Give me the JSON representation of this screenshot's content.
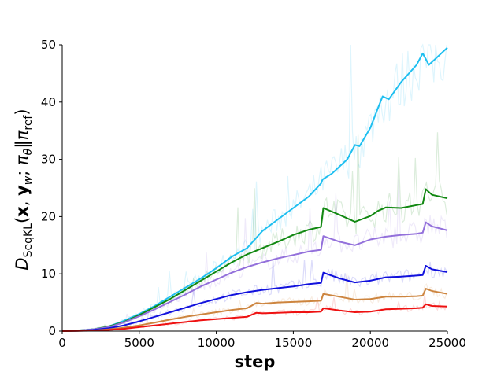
{
  "chart_data": {
    "type": "line",
    "title": "",
    "xlabel": "step",
    "ylabel": "D_SeqKL(x, y_w; π_θ‖π_ref)",
    "ylabel_parts": {
      "main": "D",
      "sub": "SeqKL",
      "args_open": "(",
      "x": "x",
      "comma1": ", ",
      "y": "y",
      "y_sub": "w",
      "semicolon": "; ",
      "pi1": "π",
      "pi1_sub": "θ",
      "bars": "‖",
      "pi2": "π",
      "pi2_sub": "ref",
      "args_close": ")"
    },
    "xlim": [
      0,
      25000
    ],
    "ylim": [
      0,
      50
    ],
    "xticks": [
      "0",
      "5000",
      "10000",
      "15000",
      "20000",
      "25000"
    ],
    "yticks": [
      "0",
      "10",
      "20",
      "30",
      "40",
      "50"
    ],
    "grid": false,
    "legend": "none",
    "series": [
      {
        "color": "#1fbff0",
        "x": [
          0,
          1000,
          2000,
          3000,
          4000,
          5000,
          6000,
          7000,
          8000,
          9000,
          10000,
          11000,
          12000,
          12500,
          13000,
          14000,
          15000,
          16000,
          16800,
          16900,
          17500,
          18500,
          19000,
          19300,
          20000,
          20500,
          20800,
          21200,
          22000,
          23000,
          23400,
          23800,
          24200,
          25000
        ],
        "values": [
          0,
          0.1,
          0.3,
          0.8,
          1.8,
          3.0,
          4.4,
          6.0,
          7.6,
          9.2,
          11.0,
          13.0,
          14.5,
          16.0,
          17.5,
          19.5,
          21.5,
          23.5,
          25.8,
          26.5,
          27.5,
          30.0,
          32.5,
          32.3,
          35.5,
          39.0,
          41.0,
          40.5,
          43.5,
          46.5,
          48.5,
          46.5,
          47.5,
          49.5
        ]
      },
      {
        "color": "#118811",
        "x": [
          0,
          1000,
          2000,
          3000,
          4000,
          5000,
          6000,
          7000,
          8000,
          9000,
          10000,
          11000,
          12000,
          13000,
          14000,
          15000,
          16000,
          16800,
          16950,
          18000,
          19000,
          20000,
          20500,
          21000,
          22000,
          23000,
          23400,
          23600,
          24000,
          25000
        ],
        "values": [
          0,
          0.1,
          0.3,
          0.8,
          1.6,
          2.8,
          4.2,
          5.6,
          7.2,
          8.8,
          10.4,
          12.0,
          13.4,
          14.5,
          15.6,
          16.8,
          17.7,
          18.2,
          21.5,
          20.3,
          19.1,
          20.1,
          21.0,
          21.6,
          21.5,
          22.0,
          22.2,
          24.8,
          23.8,
          23.2
        ]
      },
      {
        "color": "#9370db",
        "x": [
          0,
          1000,
          2000,
          3000,
          4000,
          5000,
          6000,
          7000,
          8000,
          9000,
          10000,
          11000,
          12000,
          13000,
          14000,
          15000,
          16000,
          16800,
          16950,
          18000,
          19000,
          20000,
          21000,
          22000,
          23000,
          23400,
          23600,
          24000,
          25000
        ],
        "values": [
          0,
          0.1,
          0.3,
          0.7,
          1.5,
          2.6,
          3.8,
          5.1,
          6.4,
          7.8,
          9.0,
          10.2,
          11.2,
          12.0,
          12.7,
          13.3,
          13.9,
          14.2,
          16.6,
          15.6,
          15.0,
          16.0,
          16.5,
          16.8,
          17.0,
          17.2,
          19.0,
          18.3,
          17.6
        ]
      },
      {
        "color": "#1111dd",
        "x": [
          0,
          1000,
          2000,
          3000,
          4000,
          5000,
          6000,
          7000,
          8000,
          9000,
          10000,
          11000,
          12000,
          13000,
          14000,
          15000,
          16000,
          16800,
          16950,
          18000,
          19000,
          20000,
          21000,
          22000,
          23000,
          23400,
          23600,
          24000,
          25000
        ],
        "values": [
          0,
          0.05,
          0.2,
          0.5,
          1.0,
          1.7,
          2.5,
          3.3,
          4.1,
          4.9,
          5.6,
          6.3,
          6.8,
          7.2,
          7.5,
          7.8,
          8.2,
          8.4,
          10.2,
          9.2,
          8.5,
          8.8,
          9.4,
          9.5,
          9.7,
          9.8,
          11.4,
          10.8,
          10.3
        ]
      },
      {
        "color": "#cd853f",
        "x": [
          0,
          1000,
          2000,
          3000,
          4000,
          5000,
          6000,
          7000,
          8000,
          9000,
          10000,
          11000,
          12000,
          12600,
          13000,
          14000,
          15000,
          16000,
          16800,
          16950,
          18000,
          19000,
          20000,
          21000,
          22000,
          23000,
          23400,
          23600,
          24000,
          25000
        ],
        "values": [
          0,
          0.05,
          0.1,
          0.3,
          0.6,
          1.0,
          1.5,
          2.0,
          2.5,
          2.9,
          3.3,
          3.7,
          4.0,
          4.9,
          4.8,
          5.0,
          5.1,
          5.2,
          5.3,
          6.5,
          6.0,
          5.5,
          5.6,
          6.0,
          6.0,
          6.1,
          6.2,
          7.4,
          7.0,
          6.5
        ]
      },
      {
        "color": "#ee1111",
        "x": [
          0,
          1000,
          2000,
          3000,
          4000,
          5000,
          6000,
          7000,
          8000,
          9000,
          10000,
          11000,
          12000,
          12600,
          13000,
          14000,
          15000,
          16000,
          16800,
          16950,
          18000,
          19000,
          20000,
          21000,
          22000,
          23000,
          23400,
          23600,
          24000,
          25000
        ],
        "values": [
          0,
          0.03,
          0.08,
          0.2,
          0.4,
          0.7,
          1.0,
          1.3,
          1.6,
          1.9,
          2.1,
          2.3,
          2.5,
          3.2,
          3.1,
          3.2,
          3.3,
          3.3,
          3.4,
          4.0,
          3.6,
          3.3,
          3.4,
          3.8,
          3.9,
          4.0,
          4.1,
          4.7,
          4.4,
          4.3
        ]
      }
    ]
  }
}
